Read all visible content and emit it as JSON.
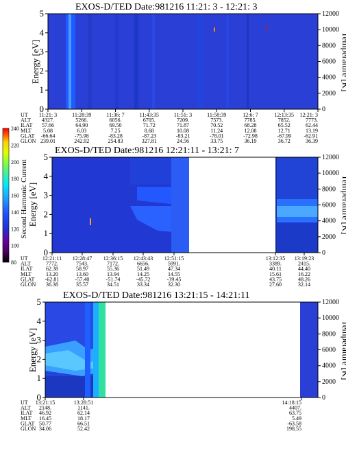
{
  "panels": [
    {
      "title": "EXOS-D/TED   Date:981216  11:21: 3 - 12:21: 3",
      "ylabel_left": "Energy [eV]",
      "ylabel_right": "Temperature [K]",
      "yticks_left": [
        "0",
        "1",
        "2",
        "3",
        "4",
        "5"
      ],
      "yticks_right": [
        "0",
        "2000",
        "4000",
        "6000",
        "8000",
        "10000",
        "12000"
      ],
      "row_labels": [
        "UT",
        "ALT",
        "ILAT",
        "MLT",
        "GLAT",
        "GLON"
      ],
      "columns": [
        {
          "time": "11:21: 3",
          "ALT": "4327.",
          "ILAT": "57.66",
          "MLT": "5.08",
          "GLAT": "-66.64",
          "GLON": "239.01"
        },
        {
          "time": "11:28:39",
          "ALT": "5266.",
          "ILAT": "64.90",
          "MLT": "6.03",
          "GLAT": "-75.98",
          "GLON": "242.92"
        },
        {
          "time": "11:36: 7",
          "ALT": "6056.",
          "ILAT": "69.50",
          "MLT": "7.25",
          "GLAT": "-83.28",
          "GLON": "254.83"
        },
        {
          "time": "11:43:35",
          "ALT": "6705.",
          "ILAT": "71.72",
          "MLT": "8.68",
          "GLAT": "-87.23",
          "GLON": "327.81"
        },
        {
          "time": "11:51: 3",
          "ALT": "7209.",
          "ILAT": "71.87",
          "MLT": "10.08",
          "GLAT": "-83.21",
          "GLON": "24.56"
        },
        {
          "time": "11:58:39",
          "ALT": "7573.",
          "ILAT": "70.52",
          "MLT": "11.24",
          "GLAT": "-78.01",
          "GLON": "33.75"
        },
        {
          "time": "12:6: 7",
          "ALT": "7785.",
          "ILAT": "68.28",
          "MLT": "12.08",
          "GLAT": "-72.98",
          "GLON": "36.19"
        },
        {
          "time": "12:13:35",
          "ALT": "7852.",
          "ILAT": "65.52",
          "MLT": "12.71",
          "GLAT": "-67.99",
          "GLON": "36.72"
        },
        {
          "time": "12:21: 3",
          "ALT": "7773.",
          "ILAT": "62.44",
          "MLT": "13.19",
          "GLAT": "-62.91",
          "GLON": "36.39"
        }
      ]
    },
    {
      "title": "EXOS-D/TED   Date:981216  12:21:11 - 13:21: 7",
      "ylabel_left": "Energy [eV]",
      "ylabel_right": "Temperature [K]",
      "yticks_left": [
        "0",
        "1",
        "2",
        "3",
        "4",
        "5"
      ],
      "yticks_right": [
        "0",
        "2000",
        "4000",
        "6000",
        "8000",
        "10000",
        "12000"
      ],
      "row_labels": [
        "UT",
        "ALT",
        "ILAT",
        "MLT",
        "GLAT",
        "GLON"
      ],
      "columns": [
        {
          "time": "12:21:11",
          "ALT": "7772.",
          "ILAT": "62.38",
          "MLT": "13.20",
          "GLAT": "-62.81",
          "GLON": "36.38"
        },
        {
          "time": "12:28:47",
          "ALT": "7543.",
          "ILAT": "58.97",
          "MLT": "13.60",
          "GLAT": "-57.40",
          "GLON": "35.57"
        },
        {
          "time": "12:36:15",
          "ALT": "7172.",
          "ILAT": "55.36",
          "MLT": "13.94",
          "GLAT": "-51.74",
          "GLON": "34.51"
        },
        {
          "time": "12:43:43",
          "ALT": "6656.",
          "ILAT": "51.49",
          "MLT": "14.25",
          "GLAT": "-45.72",
          "GLON": "33.34"
        },
        {
          "time": "12:51:15",
          "ALT": "5991.",
          "ILAT": "47.34",
          "MLT": "14.55",
          "GLAT": "-39.45",
          "GLON": "32.30"
        },
        {
          "time": "13:12:35",
          "ALT": "3389.",
          "ILAT": "40.11",
          "MLT": "15.61",
          "GLAT": "43.75",
          "GLON": "27.60"
        },
        {
          "time": "13:19:23",
          "ALT": "2415.",
          "ILAT": "44.40",
          "MLT": "16.22",
          "GLAT": "48.26",
          "GLON": "32.14"
        }
      ]
    },
    {
      "title": "EXOS-D/TED   Date:981216  13:21:15 - 14:21:11",
      "ylabel_left": "Energy [eV]",
      "ylabel_right": "Temperature [K]",
      "yticks_left": [
        "0",
        "1",
        "2",
        "3",
        "4",
        "5"
      ],
      "yticks_right": [
        "0",
        "2000",
        "4000",
        "6000",
        "8000",
        "10000",
        "12000"
      ],
      "row_labels": [
        "UT",
        "ALT",
        "ILAT",
        "MLT",
        "GLAT",
        "GLON"
      ],
      "columns": [
        {
          "time": "13:21:15",
          "ALT": "2148.",
          "ILAT": "46.92",
          "MLT": "16.45",
          "GLAT": "50.77",
          "GLON": "34.06"
        },
        {
          "time": "13:28:51",
          "ALT": "1141.",
          "ILAT": "62.14",
          "MLT": "18.17",
          "GLAT": "66.51",
          "GLON": "52.42"
        },
        {
          "time": "14:18:15",
          "ALT": "4407.",
          "ILAT": "63.75",
          "MLT": "5.49",
          "GLAT": "-63.58",
          "GLON": "198.55"
        }
      ]
    }
  ],
  "colorbar": {
    "label": "Second Harmonic Current",
    "ticks": [
      "80",
      "100",
      "120",
      "140",
      "160",
      "180",
      "200",
      "220",
      "240"
    ],
    "colors": [
      "#000000",
      "#4a0060",
      "#6a00a0",
      "#2030d0",
      "#1e50ff",
      "#1ea0ff",
      "#00e8ff",
      "#40f0a0",
      "#80ff40",
      "#e0ff00",
      "#ffd000",
      "#ff6000",
      "#ff0000"
    ]
  },
  "chart_data": [
    {
      "type": "heatmap",
      "title": "EXOS-D/TED   Date:981216  11:21: 3 - 12:21: 3",
      "xlabel": "UT",
      "ylabel": "Energy [eV]",
      "ylabel_right": "Temperature [K]",
      "ylim": [
        0,
        5
      ],
      "ylim_right": [
        0,
        12000
      ],
      "x_ticks": [
        "11:21: 3",
        "11:28:39",
        "11:36: 7",
        "11:43:35",
        "11:51: 3",
        "11:58:39",
        "12:6: 7",
        "12:13:35",
        "12:21: 3"
      ],
      "data_gaps": [],
      "dominant_level": "blue (about 130-140)"
    },
    {
      "type": "heatmap",
      "title": "EXOS-D/TED   Date:981216  12:21:11 - 13:21: 7",
      "xlabel": "UT",
      "ylabel": "Energy [eV]",
      "ylabel_right": "Temperature [K]",
      "ylim": [
        0,
        5
      ],
      "ylim_right": [
        0,
        12000
      ],
      "x_ticks": [
        "12:21:11",
        "12:28:47",
        "12:36:15",
        "12:43:43",
        "12:51:15",
        "13:12:35",
        "13:19:23"
      ],
      "data_gaps": [
        [
          "12:51:15",
          "13:12:35"
        ]
      ],
      "dominant_level": "blue (about 130-150)"
    },
    {
      "type": "heatmap",
      "title": "EXOS-D/TED   Date:981216  13:21:15 - 14:21:11",
      "xlabel": "UT",
      "ylabel": "Energy [eV]",
      "ylabel_right": "Temperature [K]",
      "ylim": [
        0,
        5
      ],
      "ylim_right": [
        0,
        12000
      ],
      "x_ticks": [
        "13:21:15",
        "13:28:51",
        "14:18:15"
      ],
      "data_gaps": [
        [
          "13:30",
          "14:17"
        ]
      ],
      "dominant_level": "blue to cyan (about 130-180)"
    }
  ]
}
